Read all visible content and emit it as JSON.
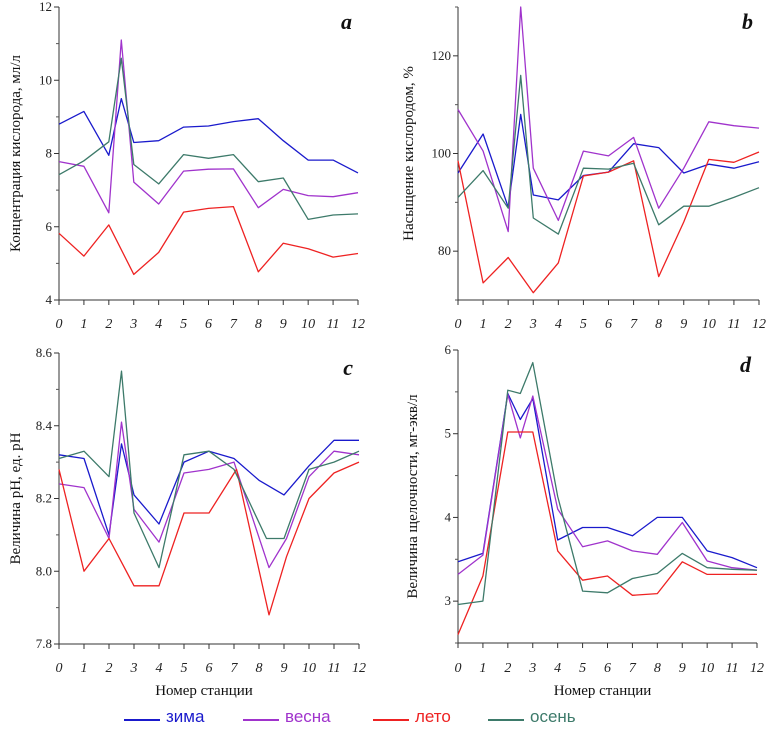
{
  "legend": [
    {
      "label": "зима",
      "color": "#1a1acc"
    },
    {
      "label": "весна",
      "color": "#a033cc"
    },
    {
      "label": "лето",
      "color": "#ee2222"
    },
    {
      "label": "осень",
      "color": "#3d7a6a"
    }
  ],
  "chart_data": [
    {
      "type": "line",
      "panel_label": "a",
      "ylabel": "Концентрация кислорода, мл/л",
      "xlabel": "",
      "ylim": [
        4,
        12
      ],
      "yticks": [
        4,
        6,
        8,
        10,
        12
      ],
      "yminor": [
        5,
        7,
        9,
        11
      ],
      "xlim": [
        0,
        12
      ],
      "xticks": [
        0,
        1,
        2,
        3,
        4,
        5,
        6,
        7,
        8,
        9,
        10,
        11,
        12
      ],
      "series": [
        {
          "name": "зима",
          "x": [
            0,
            1,
            2,
            2.5,
            3,
            4,
            5,
            6,
            7,
            8,
            9,
            10,
            11,
            12
          ],
          "y": [
            8.8,
            9.15,
            7.95,
            9.5,
            8.3,
            8.35,
            8.72,
            8.75,
            8.87,
            8.95,
            8.35,
            7.82,
            7.82,
            7.47
          ]
        },
        {
          "name": "весна",
          "x": [
            0,
            1,
            2,
            2.5,
            3,
            4,
            5,
            6,
            7,
            8,
            9,
            10,
            11,
            12
          ],
          "y": [
            7.78,
            7.65,
            6.38,
            11.1,
            7.22,
            6.62,
            7.52,
            7.57,
            7.58,
            6.52,
            7.02,
            6.85,
            6.82,
            6.93
          ]
        },
        {
          "name": "лето",
          "x": [
            0,
            1,
            2,
            3,
            4,
            5,
            6,
            7,
            8,
            9,
            10,
            11,
            12
          ],
          "y": [
            5.82,
            5.2,
            6.05,
            4.7,
            5.3,
            6.4,
            6.5,
            6.55,
            4.77,
            5.55,
            5.4,
            5.17,
            5.27
          ]
        },
        {
          "name": "осень",
          "x": [
            0,
            1,
            2,
            2.5,
            3,
            4,
            5,
            6,
            7,
            8,
            9,
            10,
            11,
            12
          ],
          "y": [
            7.42,
            7.8,
            8.32,
            10.6,
            7.7,
            7.17,
            7.97,
            7.87,
            7.97,
            7.23,
            7.33,
            6.2,
            6.32,
            6.35
          ]
        }
      ]
    },
    {
      "type": "line",
      "panel_label": "b",
      "ylabel": "Насыщение кислородом, %",
      "xlabel": "",
      "ylim": [
        70,
        130
      ],
      "yticks": [
        80,
        100,
        120
      ],
      "yminor": [
        70,
        90,
        110,
        130
      ],
      "xlim": [
        0,
        12
      ],
      "xticks": [
        0,
        1,
        2,
        3,
        4,
        5,
        6,
        7,
        8,
        9,
        10,
        11,
        12
      ],
      "series": [
        {
          "name": "зима",
          "x": [
            0,
            1,
            2,
            2.5,
            3,
            4,
            5,
            6,
            7,
            8,
            9,
            10,
            11,
            12
          ],
          "y": [
            96,
            104,
            89,
            108,
            91.5,
            90.5,
            95.5,
            96.2,
            102,
            101.2,
            96,
            97.8,
            97,
            98.3
          ]
        },
        {
          "name": "весна",
          "x": [
            0,
            1,
            2,
            2.5,
            3,
            4,
            5,
            6,
            7,
            8,
            9,
            10,
            11,
            12
          ],
          "y": [
            109,
            100.5,
            84,
            130,
            97,
            86.3,
            100.5,
            99.5,
            103.3,
            88.8,
            97,
            106.5,
            105.7,
            105.2
          ]
        },
        {
          "name": "лето",
          "x": [
            0,
            1,
            2,
            3,
            4,
            5,
            6,
            7,
            8,
            9,
            10,
            11,
            12
          ],
          "y": [
            98.5,
            73.5,
            78.7,
            71.5,
            77.6,
            95.4,
            96.2,
            98.5,
            74.8,
            86,
            98.8,
            98.2,
            100.3
          ]
        },
        {
          "name": "осень",
          "x": [
            0,
            1,
            2,
            2.5,
            3,
            4,
            5,
            6,
            7,
            8,
            9,
            10,
            11,
            12
          ],
          "y": [
            91,
            96.5,
            88.8,
            116,
            86.8,
            83.5,
            97,
            96.8,
            98,
            85.4,
            89.2,
            89.2,
            91,
            93
          ]
        }
      ]
    },
    {
      "type": "line",
      "panel_label": "c",
      "ylabel": "Величина pH, ед. pH",
      "xlabel": "Номер станции",
      "ylim": [
        7.8,
        8.6
      ],
      "yticks": [
        7.8,
        8.0,
        8.2,
        8.4,
        8.6
      ],
      "yminor": [
        7.9,
        8.1,
        8.3,
        8.5
      ],
      "xlim": [
        0,
        12
      ],
      "xticks": [
        0,
        1,
        2,
        3,
        4,
        5,
        6,
        7,
        8,
        9,
        10,
        11,
        12
      ],
      "series": [
        {
          "name": "зима",
          "x": [
            0,
            1,
            2,
            2.5,
            3,
            4,
            5,
            6,
            7,
            8,
            9,
            10,
            11,
            12
          ],
          "y": [
            8.32,
            8.31,
            8.1,
            8.35,
            8.21,
            8.13,
            8.3,
            8.33,
            8.31,
            8.25,
            8.21,
            8.29,
            8.36,
            8.36
          ]
        },
        {
          "name": "весна",
          "x": [
            0,
            1,
            2,
            2.5,
            3,
            4,
            5,
            6,
            7,
            8.4,
            9.1,
            10,
            11,
            12
          ],
          "y": [
            8.24,
            8.23,
            8.09,
            8.41,
            8.17,
            8.08,
            8.27,
            8.28,
            8.3,
            8.01,
            8.09,
            8.26,
            8.33,
            8.32
          ]
        },
        {
          "name": "лето",
          "x": [
            0,
            1,
            2,
            3,
            4,
            5,
            6,
            7.1,
            8.4,
            9.1,
            10,
            11,
            12
          ],
          "y": [
            8.28,
            8.0,
            8.09,
            7.96,
            7.96,
            8.16,
            8.16,
            8.28,
            7.88,
            8.04,
            8.2,
            8.27,
            8.3
          ]
        },
        {
          "name": "осень",
          "x": [
            0,
            1,
            2,
            2.5,
            3,
            4,
            5,
            6,
            7,
            8.3,
            9,
            10,
            11,
            12
          ],
          "y": [
            8.31,
            8.33,
            8.26,
            8.55,
            8.16,
            8.01,
            8.32,
            8.33,
            8.28,
            8.09,
            8.09,
            8.28,
            8.3,
            8.33
          ]
        }
      ]
    },
    {
      "type": "line",
      "panel_label": "d",
      "ylabel": "Величина щелочности, мг-экв/л",
      "xlabel": "Номер станции",
      "ylim": [
        2.5,
        6
      ],
      "yticks": [
        3,
        4,
        5,
        6
      ],
      "yminor": [
        2.5,
        3.5,
        4.5,
        5.5
      ],
      "xlim": [
        0,
        12
      ],
      "xticks": [
        0,
        1,
        2,
        3,
        4,
        5,
        6,
        7,
        8,
        9,
        10,
        11,
        12
      ],
      "series": [
        {
          "name": "зима",
          "x": [
            0,
            1,
            2,
            2.5,
            3,
            4,
            5,
            6,
            7,
            8,
            9,
            10,
            11,
            12
          ],
          "y": [
            3.47,
            3.57,
            5.48,
            5.17,
            5.42,
            3.73,
            3.88,
            3.88,
            3.78,
            4.0,
            4.0,
            3.6,
            3.52,
            3.4
          ]
        },
        {
          "name": "весна",
          "x": [
            0,
            1,
            2,
            2.5,
            3,
            4,
            5,
            6,
            7,
            8,
            9,
            10,
            11,
            12
          ],
          "y": [
            3.32,
            3.55,
            5.47,
            4.95,
            5.45,
            4.1,
            3.65,
            3.72,
            3.6,
            3.56,
            3.94,
            3.48,
            3.4,
            3.37
          ]
        },
        {
          "name": "лето",
          "x": [
            0,
            1,
            2,
            3,
            4,
            5,
            6,
            7,
            8,
            9,
            10,
            11,
            12
          ],
          "y": [
            2.6,
            3.3,
            5.02,
            5.02,
            3.6,
            3.25,
            3.3,
            3.07,
            3.09,
            3.47,
            3.32,
            3.32,
            3.32
          ]
        },
        {
          "name": "осень",
          "x": [
            0,
            1,
            2,
            2.5,
            3,
            4,
            5,
            6,
            7,
            8,
            9,
            10,
            11,
            12
          ],
          "y": [
            2.96,
            3.0,
            5.52,
            5.48,
            5.85,
            4.25,
            3.12,
            3.1,
            3.27,
            3.33,
            3.57,
            3.4,
            3.38,
            3.37
          ]
        }
      ]
    }
  ]
}
